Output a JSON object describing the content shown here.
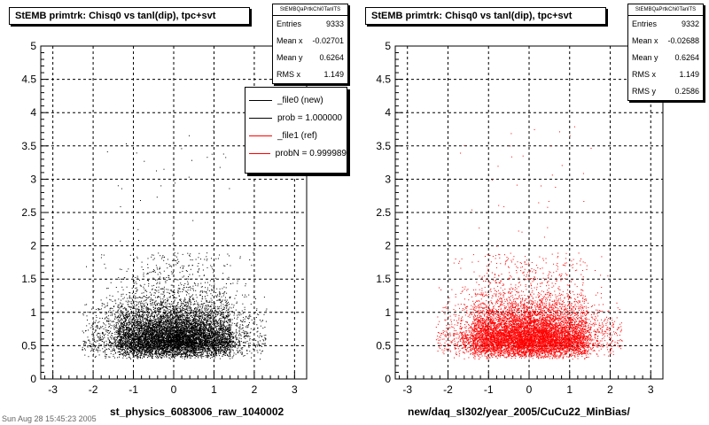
{
  "chart_data": [
    {
      "type": "scatter",
      "title": "StEMB primtrk: Chisq0 vs tanl(dip), tpc+svt",
      "xlabel": "st_physics_6083006_raw_1040002",
      "ylabel": "",
      "xlim": [
        -3.3,
        3.3
      ],
      "ylim": [
        0,
        5
      ],
      "x_ticks": [
        -3,
        -2,
        -1,
        0,
        1,
        2,
        3
      ],
      "y_ticks": [
        0,
        0.5,
        1,
        1.5,
        2,
        2.5,
        3,
        3.5,
        4,
        4.5,
        5
      ],
      "grid": true,
      "color": "#000000",
      "stats": {
        "name": "StEMBQaPrtkChi0TanlTS",
        "rows": [
          {
            "label": "Entries",
            "value": "9333"
          },
          {
            "label": "Mean x",
            "value": "-0.02701"
          },
          {
            "label": "Mean y",
            "value": "0.6264"
          },
          {
            "label": "RMS x",
            "value": "1.149"
          }
        ]
      },
      "legend": [
        {
          "label": "_file0 (new)",
          "color": "#000000"
        },
        {
          "label": "prob = 1.000000",
          "color": "#000000"
        },
        {
          "label": "_file1 (ref)",
          "color": "#ff0000"
        },
        {
          "label": "probN = 0.999989",
          "color": "#ff0000"
        }
      ],
      "legend_position": "top-right",
      "distribution": {
        "entries": 9333,
        "mean_x": -0.02701,
        "mean_y": 0.6264,
        "rms_x": 1.149,
        "rms_y": 0.2586
      }
    },
    {
      "type": "scatter",
      "title": "StEMB primtrk: Chisq0 vs tanl(dip), tpc+svt",
      "xlabel": "new/daq_sl302/year_2005/CuCu22_MinBias/",
      "ylabel": "",
      "xlim": [
        -3.3,
        3.3
      ],
      "ylim": [
        0,
        5
      ],
      "x_ticks": [
        -3,
        -2,
        -1,
        0,
        1,
        2,
        3
      ],
      "y_ticks": [
        0,
        0.5,
        1,
        1.5,
        2,
        2.5,
        3,
        3.5,
        4,
        4.5,
        5
      ],
      "grid": true,
      "color": "#ff0000",
      "stats": {
        "name": "StEMBQaPrtkChi0TanlTS",
        "rows": [
          {
            "label": "Entries",
            "value": "9332"
          },
          {
            "label": "Mean x",
            "value": "-0.02688"
          },
          {
            "label": "Mean y",
            "value": "0.6264"
          },
          {
            "label": "RMS x",
            "value": "1.149"
          },
          {
            "label": "RMS y",
            "value": "0.2586"
          }
        ]
      },
      "distribution": {
        "entries": 9332,
        "mean_x": -0.02688,
        "mean_y": 0.6264,
        "rms_x": 1.149,
        "rms_y": 0.2586
      }
    }
  ],
  "footer": "Sun Aug 28 15:45:23 2005"
}
